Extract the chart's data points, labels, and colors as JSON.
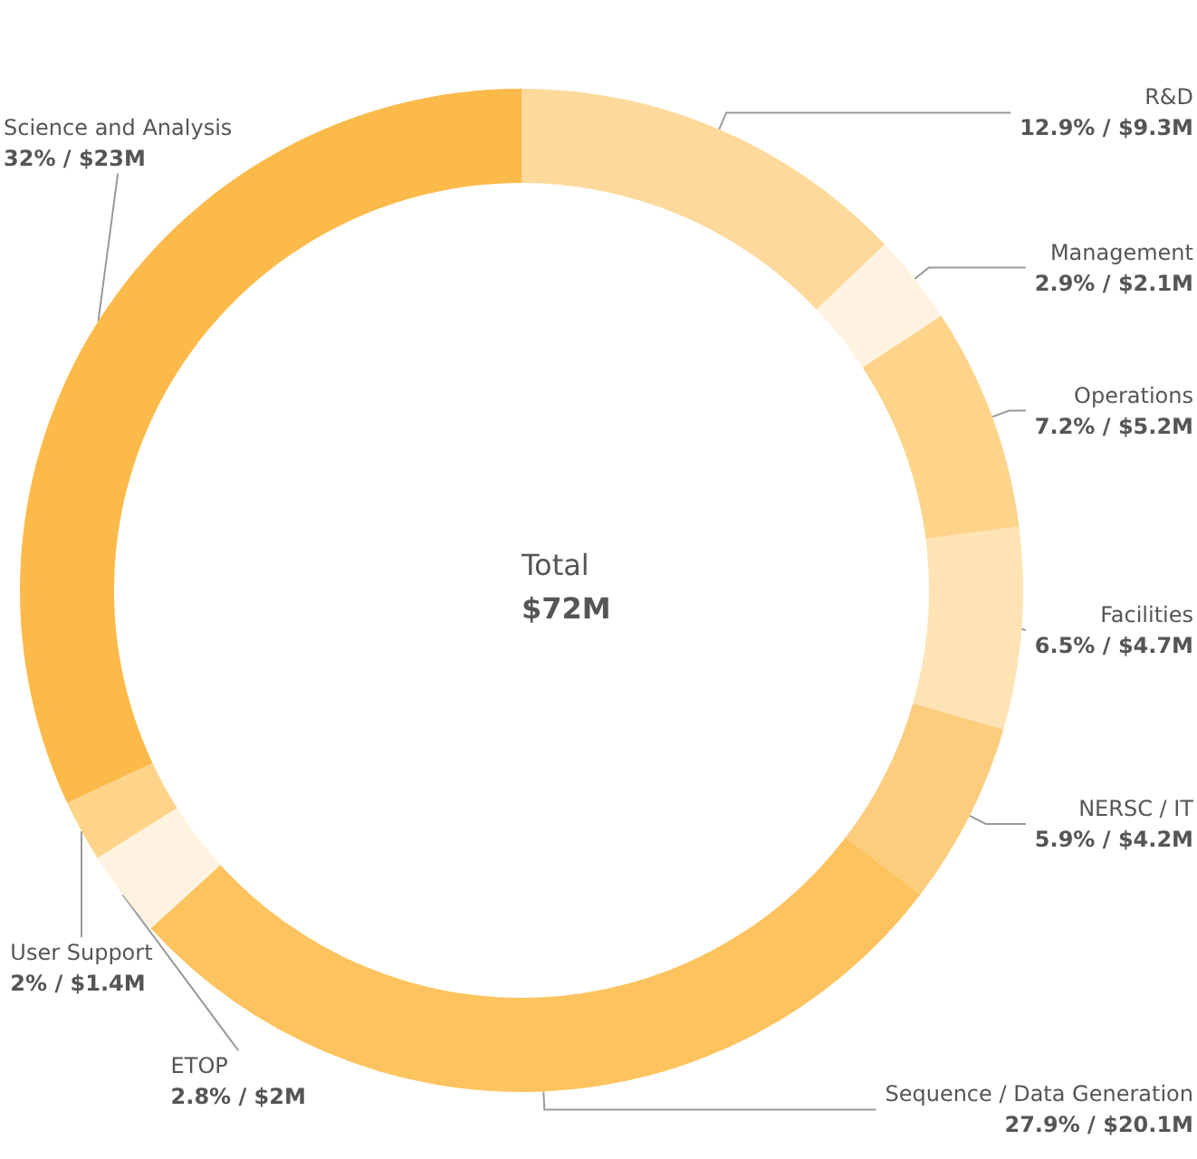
{
  "chart_data": {
    "type": "donut",
    "categories": [
      "R&D",
      "Management",
      "Operations",
      "Facilities",
      "NERSC / IT",
      "Sequence / Data Generation",
      "ETOP",
      "User Support",
      "Science and Analysis"
    ],
    "values": [
      12.9,
      2.9,
      7.2,
      6.5,
      5.9,
      27.9,
      2.8,
      2,
      32
    ],
    "value_labels": [
      "12.9% / $9.3M",
      "2.9% / $2.1M",
      "7.2% / $5.2M",
      "6.5% / $4.7M",
      "5.9% / $4.2M",
      "27.9% / $20.1M",
      "2.8% / $2M",
      "2% / $1.4M",
      "32% / $23M"
    ],
    "colors": [
      "#fdd99b",
      "#fef3e0",
      "#fdd48a",
      "#fee3b4",
      "#fdcd7e",
      "#fdc35f",
      "#fef3e0",
      "#fdd48a",
      "#fcba4a"
    ],
    "annotations": [
      "Total",
      "$72M"
    ],
    "legend": false
  }
}
